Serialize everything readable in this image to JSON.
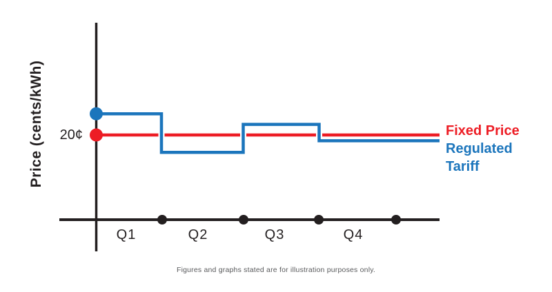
{
  "colors": {
    "axis": "#231f20",
    "fixed_price": "#ed1c24",
    "regulated_tariff": "#1b75bc",
    "line_casing": "#ffffff",
    "footnote_text": "#58595b",
    "background": "#ffffff"
  },
  "chart_data": {
    "type": "line",
    "title": "",
    "xlabel": "",
    "ylabel": "Price (cents/kWh)",
    "x_tick_labels": [
      "Q1",
      "Q2",
      "Q3",
      "Q4"
    ],
    "y_tick": {
      "label": "20¢",
      "value_cents": 20
    },
    "grid": false,
    "legend_position": "right",
    "series": [
      {
        "name": "Fixed Price",
        "style": "flat-line",
        "color": "#ed1c24",
        "values_cents": [
          20,
          20,
          20,
          20
        ]
      },
      {
        "name": "Regulated Tariff",
        "style": "step-line",
        "color": "#1b75bc",
        "values_cents": [
          22.2,
          18.2,
          21.1,
          19.4
        ]
      }
    ],
    "y_axis_start_markers": [
      {
        "series": "Regulated Tariff",
        "color": "#1b75bc"
      },
      {
        "series": "Fixed Price",
        "color": "#ed1c24"
      }
    ],
    "x_axis_quarter_dots": 4,
    "footnote": "Figures and graphs stated are for illustration purposes only."
  }
}
